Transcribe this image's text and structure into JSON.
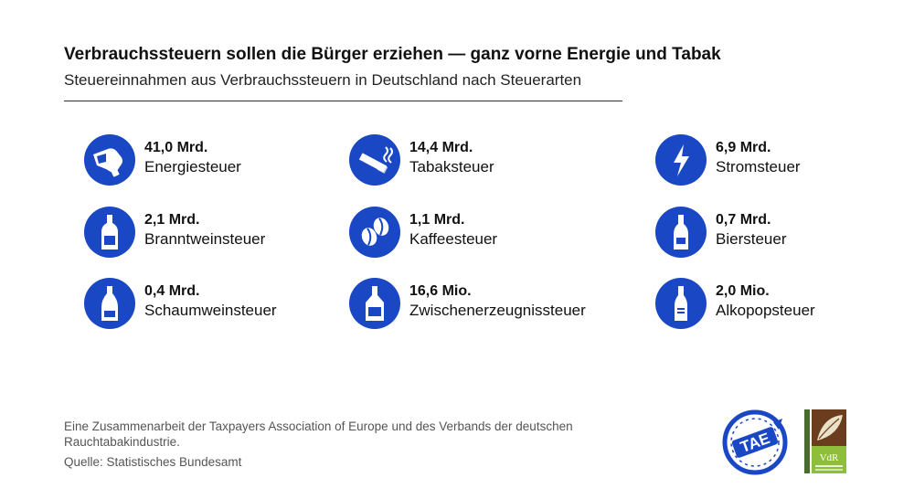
{
  "header": {
    "title": "Verbrauchssteuern sollen die Bürger erziehen — ganz vorne Energie und Tabak",
    "subtitle": "Steuereinnahmen aus Verbrauchssteuern in Deutschland nach Steuerarten"
  },
  "chart_data": {
    "type": "table",
    "title": "Verbrauchssteuern sollen die Bürger erziehen — ganz vorne Energie und Tabak",
    "subtitle": "Steuereinnahmen aus Verbrauchssteuern in Deutschland nach Steuerarten",
    "accent_color": "#1a47c4",
    "items": [
      {
        "value": "41,0 Mrd.",
        "label": "Energiesteuer",
        "icon": "fuel-nozzle-icon"
      },
      {
        "value": "14,4 Mrd.",
        "label": "Tabaksteuer",
        "icon": "cigarette-icon"
      },
      {
        "value": "6,9 Mrd.",
        "label": "Stromsteuer",
        "icon": "lightning-icon"
      },
      {
        "value": "2,1 Mrd.",
        "label": "Branntweinsteuer",
        "icon": "spirits-bottle-icon"
      },
      {
        "value": "1,1 Mrd.",
        "label": "Kaffeesteuer",
        "icon": "coffee-beans-icon"
      },
      {
        "value": "0,7 Mrd.",
        "label": "Biersteuer",
        "icon": "beer-bottle-icon"
      },
      {
        "value": "0,4 Mrd.",
        "label": "Schaumweinsteuer",
        "icon": "sparkling-wine-bottle-icon"
      },
      {
        "value": "16,6 Mio.",
        "label": "Zwischenerzeugnissteuer",
        "icon": "liqueur-bottle-icon"
      },
      {
        "value": "2,0 Mio.",
        "label": "Alkopopsteuer",
        "icon": "alcopop-bottle-icon"
      }
    ]
  },
  "footer": {
    "note": "Eine Zusammenarbeit der Taxpayers Association of Europe und des Verbands der deutschen Rauchtabakindustrie.",
    "source": "Quelle: Statistisches Bundesamt"
  },
  "logos": {
    "tae_text": "TAE",
    "vdr_text": "VdR"
  }
}
